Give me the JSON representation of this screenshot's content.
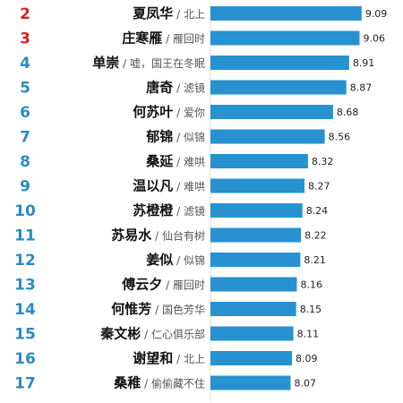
{
  "chart_data": {
    "type": "bar",
    "orientation": "horizontal",
    "rows": [
      {
        "rank": "2",
        "name": "夏凤华",
        "source": "北上",
        "value": 9.09
      },
      {
        "rank": "3",
        "name": "庄寒雁",
        "source": "雁回时",
        "value": 9.06
      },
      {
        "rank": "4",
        "name": "单崇",
        "source": "嘘，国王在冬眠",
        "value": 8.91
      },
      {
        "rank": "5",
        "name": "唐奇",
        "source": "滤镜",
        "value": 8.87
      },
      {
        "rank": "6",
        "name": "何苏叶",
        "source": "爱你",
        "value": 8.68
      },
      {
        "rank": "7",
        "name": "郁锦",
        "source": "似锦",
        "value": 8.56
      },
      {
        "rank": "8",
        "name": "桑延",
        "source": "难哄",
        "value": 8.32
      },
      {
        "rank": "9",
        "name": "温以凡",
        "source": "难哄",
        "value": 8.27
      },
      {
        "rank": "10",
        "name": "苏橙橙",
        "source": "滤镜",
        "value": 8.24
      },
      {
        "rank": "11",
        "name": "苏易水",
        "source": "仙台有树",
        "value": 8.22
      },
      {
        "rank": "12",
        "name": "姜似",
        "source": "似锦",
        "value": 8.21
      },
      {
        "rank": "13",
        "name": "傅云夕",
        "source": "雁回时",
        "value": 8.16
      },
      {
        "rank": "14",
        "name": "何惟芳",
        "source": "国色芳华",
        "value": 8.15
      },
      {
        "rank": "15",
        "name": "秦文彬",
        "source": "仁心俱乐部",
        "value": 8.11
      },
      {
        "rank": "16",
        "name": "谢望和",
        "source": "北上",
        "value": 8.09
      },
      {
        "rank": "17",
        "name": "桑稚",
        "source": "偷偷藏不住",
        "value": 8.07
      }
    ],
    "separator": "/",
    "value_format": "2 decimals",
    "title": "",
    "xlabel": "",
    "ylabel": "",
    "grid": false,
    "legend": "none",
    "colors": {
      "bar": "#2792cf",
      "rank_top": "#d42121",
      "rank": "#2a8bc4"
    }
  }
}
